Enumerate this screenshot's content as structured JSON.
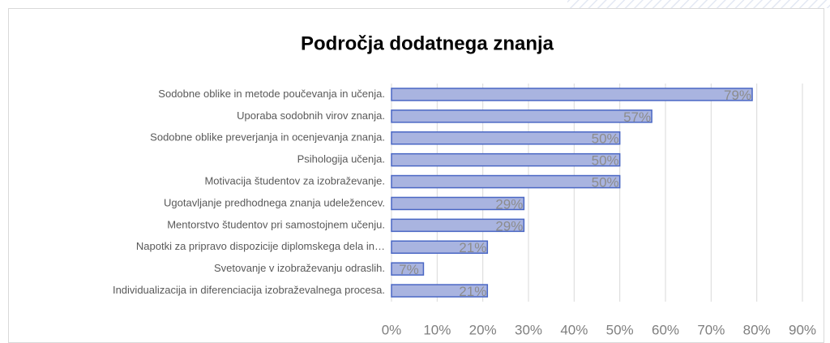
{
  "chart_data": {
    "type": "hbar",
    "title": "Področja dodatnega znanja",
    "categories": [
      "Sodobne oblike in metode poučevanja in učenja.",
      "Uporaba sodobnih virov znanja.",
      "Sodobne oblike preverjanja in ocenjevanja znanja.",
      "Psihologija učenja.",
      "Motivacija študentov za izobraževanje.",
      "Ugotavljanje predhodnega znanja udeležencev.",
      "Mentorstvo študentov pri samostojnem učenju.",
      "Napotki za pripravo dispozicije diplomskega dela in…",
      "Svetovanje v izobraževanju odraslih.",
      "Individualizacija in diferenciacija izobraževalnega procesa."
    ],
    "values": [
      79,
      57,
      50,
      50,
      50,
      29,
      29,
      21,
      7,
      21
    ],
    "value_labels": [
      "79%",
      "57%",
      "50%",
      "50%",
      "50%",
      "29%",
      "29%",
      "21%",
      "7%",
      "21%"
    ],
    "color": "#a9b4e0",
    "edge_color": "#4a67c4",
    "xlim": [
      0,
      90
    ],
    "xticks": [
      {
        "value": 0,
        "label": "0%"
      },
      {
        "value": 10,
        "label": "10%"
      },
      {
        "value": 20,
        "label": "20%"
      },
      {
        "value": 30,
        "label": "30%"
      },
      {
        "value": 40,
        "label": "40%"
      },
      {
        "value": 50,
        "label": "50%"
      },
      {
        "value": 60,
        "label": "60%"
      },
      {
        "value": 70,
        "label": "70%"
      },
      {
        "value": 80,
        "label": "80%"
      },
      {
        "value": 90,
        "label": "90%"
      }
    ],
    "grid": true
  }
}
